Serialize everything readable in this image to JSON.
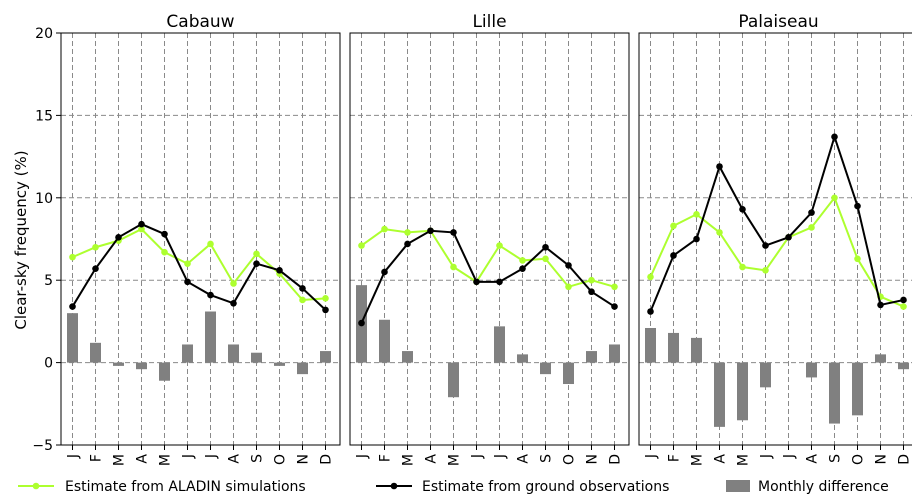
{
  "chart_data": {
    "type": "line",
    "ylabel": "Clear-sky frequency (%)",
    "ylim": [
      -5,
      20
    ],
    "yticks": [
      -5,
      0,
      5,
      10,
      15,
      20
    ],
    "categories": [
      "J",
      "F",
      "M",
      "A",
      "M",
      "J",
      "J",
      "A",
      "S",
      "O",
      "N",
      "D"
    ],
    "grid": true,
    "legend_position": "bottom",
    "series_styles": [
      {
        "name": "Estimate from ALADIN simulations",
        "kind": "line",
        "color": "#adff2f"
      },
      {
        "name": "Estimate from ground observations",
        "kind": "line",
        "color": "#000000"
      },
      {
        "name": "Monthly difference",
        "kind": "bar",
        "color": "#808080"
      }
    ],
    "panels": [
      {
        "title": "Cabauw",
        "series": [
          {
            "name": "Estimate from ALADIN simulations",
            "values": [
              6.4,
              7.0,
              7.4,
              8.1,
              6.7,
              6.0,
              7.2,
              4.8,
              6.6,
              5.4,
              3.8,
              3.9
            ]
          },
          {
            "name": "Estimate from ground observations",
            "values": [
              3.4,
              5.7,
              7.6,
              8.4,
              7.8,
              4.9,
              4.1,
              3.6,
              6.0,
              5.6,
              4.5,
              3.2
            ]
          },
          {
            "name": "Monthly difference",
            "values": [
              3.0,
              1.2,
              -0.2,
              -0.4,
              -1.1,
              1.1,
              3.1,
              1.1,
              0.6,
              -0.2,
              -0.7,
              0.7
            ]
          }
        ]
      },
      {
        "title": "Lille",
        "series": [
          {
            "name": "Estimate from ALADIN simulations",
            "values": [
              7.1,
              8.1,
              7.9,
              8.0,
              5.8,
              4.9,
              7.1,
              6.2,
              6.3,
              4.6,
              5.0,
              4.6
            ]
          },
          {
            "name": "Estimate from ground observations",
            "values": [
              2.4,
              5.5,
              7.2,
              8.0,
              7.9,
              4.9,
              4.9,
              5.7,
              7.0,
              5.9,
              4.3,
              3.4
            ]
          },
          {
            "name": "Monthly difference",
            "values": [
              4.7,
              2.6,
              0.7,
              0.0,
              -2.1,
              0.0,
              2.2,
              0.5,
              -0.7,
              -1.3,
              0.7,
              1.1
            ]
          }
        ]
      },
      {
        "title": "Palaiseau",
        "series": [
          {
            "name": "Estimate from ALADIN simulations",
            "values": [
              5.2,
              8.3,
              9.0,
              7.9,
              5.8,
              5.6,
              7.6,
              8.2,
              10.0,
              6.3,
              4.0,
              3.4
            ]
          },
          {
            "name": "Estimate from ground observations",
            "values": [
              3.1,
              6.5,
              7.5,
              11.9,
              9.3,
              7.1,
              7.6,
              9.1,
              13.7,
              9.5,
              3.5,
              3.8
            ]
          },
          {
            "name": "Monthly difference",
            "values": [
              2.1,
              1.8,
              1.5,
              -3.9,
              -3.5,
              -1.5,
              0.0,
              -0.9,
              -3.7,
              -3.2,
              0.5,
              -0.4
            ]
          }
        ]
      }
    ]
  }
}
